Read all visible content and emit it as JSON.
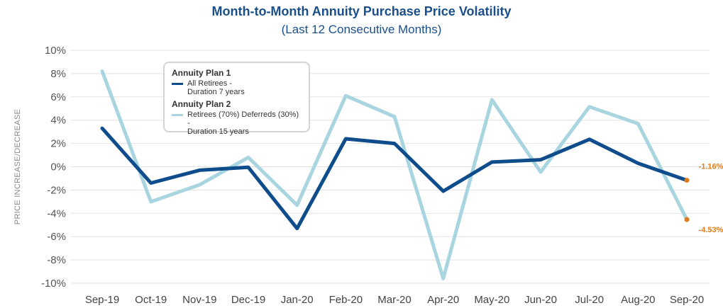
{
  "chart_data": {
    "type": "line",
    "title": "Month-to-Month Annuity Purchase Price Volatility",
    "subtitle": "(Last 12 Consecutive Months)",
    "ylabel": "PRICE INCREASE/DECREASE",
    "xlabel": "",
    "ylim": [
      -10,
      10
    ],
    "ytick_step": 2,
    "yticks": [
      "-10%",
      "-8%",
      "-6%",
      "-4%",
      "-2%",
      "0%",
      "2%",
      "4%",
      "6%",
      "8%",
      "10%"
    ],
    "grid": true,
    "categories": [
      "Sep-19",
      "Oct-19",
      "Nov-19",
      "Dec-19",
      "Jan-20",
      "Feb-20",
      "Mar-20",
      "Apr-20",
      "May-20",
      "Jun-20",
      "Jul-20",
      "Aug-20",
      "Sep-20"
    ],
    "legend_position": "top-left",
    "legend": [
      {
        "group": "Annuity Plan 1",
        "label": "All Retirees -\nDuration 7 years"
      },
      {
        "group": "Annuity Plan 2",
        "label": "Retirees (70%) Deferreds (30%) -\nDuration 15 years"
      }
    ],
    "series": [
      {
        "name": "Annuity Plan 1",
        "color": "#0e4c8b",
        "values": [
          3.3,
          -1.4,
          -0.3,
          -0.05,
          -5.3,
          2.4,
          2.0,
          -2.1,
          0.4,
          0.6,
          2.35,
          0.3,
          -1.16
        ]
      },
      {
        "name": "Annuity Plan 2",
        "color": "#a8d5df",
        "values": [
          8.2,
          -3.0,
          -1.55,
          0.8,
          -3.3,
          6.1,
          4.3,
          -9.6,
          5.75,
          -0.45,
          5.15,
          3.7,
          -4.53
        ]
      }
    ],
    "annotations": [
      {
        "series": 0,
        "label": "-1.16%",
        "color": "#e07b1c"
      },
      {
        "series": 1,
        "label": "-4.53%",
        "color": "#e07b1c"
      }
    ]
  }
}
